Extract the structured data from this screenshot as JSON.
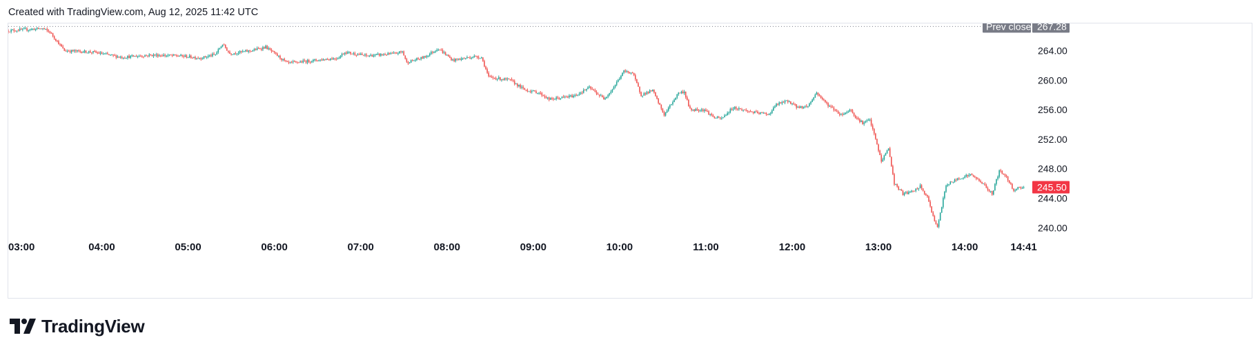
{
  "header": {
    "created_text": "Created with TradingView.com, Aug 12, 2025 11:42 UTC"
  },
  "logo": {
    "text": "TradingView",
    "icon": "tradingview-logo-icon"
  },
  "colors": {
    "up": "#26a69a",
    "down": "#ef5350",
    "axis_text": "#131722",
    "prev_close_bg": "#787b86",
    "current_price_bg": "#f23645",
    "border": "#e0e3eb"
  },
  "chart_data": {
    "type": "candlestick",
    "title": "",
    "x": [
      "03:00",
      "04:00",
      "05:00",
      "06:00",
      "07:00",
      "08:00",
      "09:00",
      "10:00",
      "11:00",
      "12:00",
      "13:00",
      "14:00",
      "14:41"
    ],
    "y_ticks": [
      "264.00",
      "260.00",
      "256.00",
      "252.00",
      "248.00",
      "244.00",
      "240.00"
    ],
    "ylim": [
      239,
      267.5
    ],
    "x_range": [
      "02:55",
      "14:46"
    ],
    "prev_close": {
      "label": "Prev close",
      "value": 267.28,
      "text": "267.28"
    },
    "current_price": {
      "value": 245.5,
      "text": "245.50"
    },
    "grid": false,
    "path": [
      [
        "02:55",
        266.7
      ],
      [
        "03:20",
        267.0
      ],
      [
        "03:25",
        266.5
      ],
      [
        "03:35",
        264.0
      ],
      [
        "03:55",
        263.8
      ],
      [
        "04:15",
        263.1
      ],
      [
        "04:35",
        263.4
      ],
      [
        "04:55",
        263.3
      ],
      [
        "05:10",
        263.0
      ],
      [
        "05:20",
        263.5
      ],
      [
        "05:25",
        264.9
      ],
      [
        "05:30",
        263.6
      ],
      [
        "05:45",
        264.0
      ],
      [
        "05:55",
        264.5
      ],
      [
        "06:10",
        262.3
      ],
      [
        "06:25",
        262.6
      ],
      [
        "06:45",
        263.0
      ],
      [
        "06:50",
        263.8
      ],
      [
        "07:05",
        263.3
      ],
      [
        "07:25",
        263.6
      ],
      [
        "07:30",
        263.9
      ],
      [
        "07:33",
        262.4
      ],
      [
        "07:45",
        263.1
      ],
      [
        "07:55",
        264.3
      ],
      [
        "08:05",
        262.7
      ],
      [
        "08:20",
        263.2
      ],
      [
        "08:25",
        263.1
      ],
      [
        "08:30",
        260.4
      ],
      [
        "08:45",
        260.0
      ],
      [
        "08:55",
        258.7
      ],
      [
        "09:05",
        258.3
      ],
      [
        "09:12",
        257.4
      ],
      [
        "09:20",
        257.6
      ],
      [
        "09:30",
        257.9
      ],
      [
        "09:40",
        259.0
      ],
      [
        "09:50",
        257.5
      ],
      [
        "09:55",
        258.5
      ],
      [
        "10:04",
        261.2
      ],
      [
        "10:10",
        261.0
      ],
      [
        "10:16",
        258.0
      ],
      [
        "10:24",
        258.6
      ],
      [
        "10:32",
        255.3
      ],
      [
        "10:36",
        256.5
      ],
      [
        "10:42",
        258.3
      ],
      [
        "10:46",
        258.4
      ],
      [
        "10:50",
        256.0
      ],
      [
        "11:00",
        256.0
      ],
      [
        "11:07",
        254.9
      ],
      [
        "11:12",
        254.8
      ],
      [
        "11:20",
        256.3
      ],
      [
        "11:35",
        255.6
      ],
      [
        "11:45",
        255.4
      ],
      [
        "11:50",
        256.7
      ],
      [
        "11:58",
        257.2
      ],
      [
        "12:05",
        256.3
      ],
      [
        "12:12",
        256.5
      ],
      [
        "12:18",
        258.3
      ],
      [
        "12:25",
        256.8
      ],
      [
        "12:35",
        255.3
      ],
      [
        "12:42",
        256.0
      ],
      [
        "12:45",
        255.0
      ],
      [
        "12:50",
        254.2
      ],
      [
        "12:55",
        254.6
      ],
      [
        "12:59",
        252.0
      ],
      [
        "13:03",
        249.0
      ],
      [
        "13:08",
        250.8
      ],
      [
        "13:12",
        246.0
      ],
      [
        "13:18",
        244.6
      ],
      [
        "13:25",
        244.9
      ],
      [
        "13:30",
        245.6
      ],
      [
        "13:35",
        244.1
      ],
      [
        "13:40",
        241.0
      ],
      [
        "13:42",
        240.0
      ],
      [
        "13:48",
        245.8
      ],
      [
        "13:58",
        246.8
      ],
      [
        "14:05",
        247.2
      ],
      [
        "14:12",
        246.3
      ],
      [
        "14:20",
        244.6
      ],
      [
        "14:25",
        247.7
      ],
      [
        "14:30",
        246.9
      ],
      [
        "14:35",
        245.1
      ],
      [
        "14:38",
        245.4
      ],
      [
        "14:41",
        245.5
      ]
    ]
  }
}
